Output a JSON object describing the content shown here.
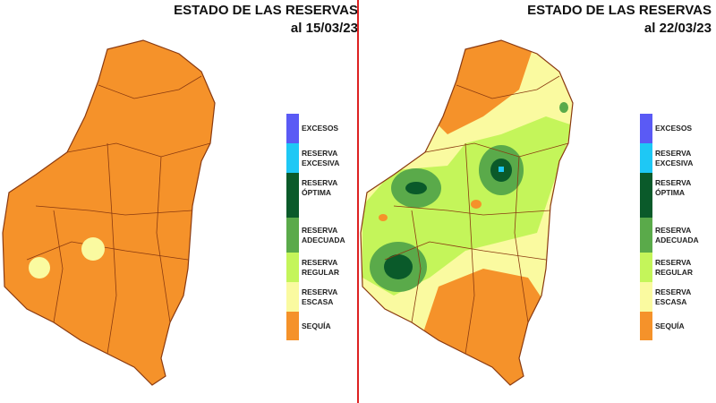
{
  "maps": [
    {
      "title": "ESTADO DE LAS RESERVAS",
      "date": "al 15/03/23"
    },
    {
      "title": "ESTADO DE LAS RESERVAS",
      "date": "al 22/03/23"
    }
  ],
  "legend": [
    {
      "label1": "EXCESOS",
      "label2": "",
      "color": "#5a5af5"
    },
    {
      "label1": "RESERVA",
      "label2": "EXCESIVA",
      "color": "#1ec8f5"
    },
    {
      "label1": "RESERVA",
      "label2": "ÓPTIMA",
      "color": "#0a5a2a"
    },
    {
      "label1": "RESERVA",
      "label2": "ADECUADA",
      "color": "#5aaa4a"
    },
    {
      "label1": "RESERVA",
      "label2": "REGULAR",
      "color": "#c4f55a"
    },
    {
      "label1": "RESERVA",
      "label2": "ESCASA",
      "color": "#fafaa0"
    },
    {
      "label1": "SEQUÍA",
      "label2": "",
      "color": "#f5922a"
    }
  ]
}
